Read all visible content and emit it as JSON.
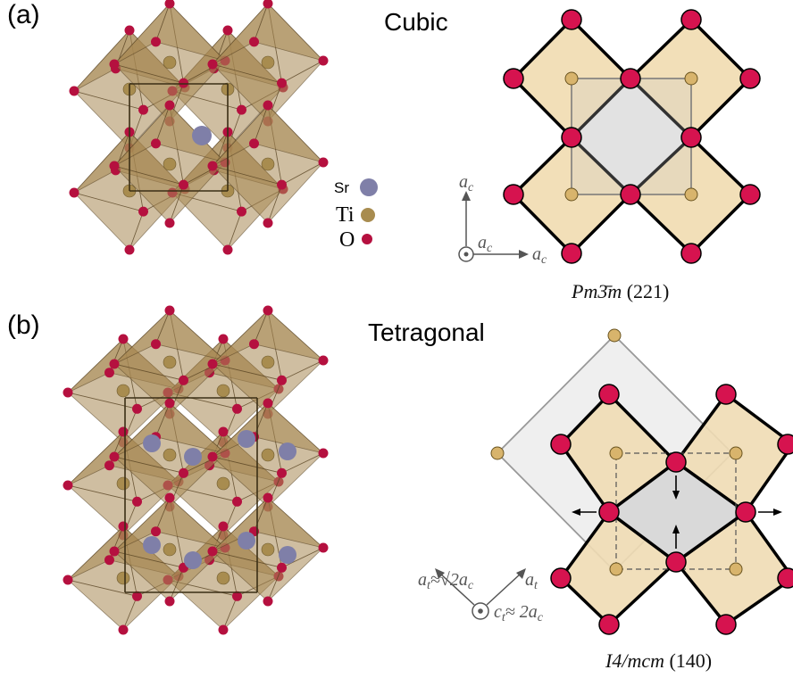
{
  "panels": [
    {
      "label": "(a)",
      "phase": "Cubic",
      "space_group": "Pm3̄m",
      "space_group_number": "(221)",
      "axes": {
        "vertical": "a",
        "vertical_sub": "c",
        "horizontal": "a",
        "horizontal_sub": "c",
        "out_of_plane": "a",
        "out_of_plane_sub": "c"
      }
    },
    {
      "label": "(b)",
      "phase": "Tetragonal",
      "space_group": "I4/mcm",
      "space_group_number": "(140)",
      "axes": {
        "left": "a",
        "left_sub": "t",
        "left_relation": "≈√2a",
        "left_relation_sub": "c",
        "right": "a",
        "right_sub": "t",
        "out_of_plane": "c",
        "out_of_plane_sub": "t",
        "out_of_plane_relation": "≈ 2a",
        "out_of_plane_relation_sub": "c"
      }
    }
  ],
  "legend": [
    {
      "symbol": "Sr",
      "color": "#7f7fa8"
    },
    {
      "symbol": "Ti",
      "color": "#a88c4f"
    },
    {
      "symbol": "O",
      "color": "#b5103f"
    }
  ],
  "colors": {
    "octahedron_fill": "#b0946a",
    "octahedron_face": "#f2dfb8",
    "oxygen": "#d6134f",
    "titanium": "#c8a45c",
    "strontium": "#7f7fa8",
    "grey_cell": "#e8e8e8"
  }
}
